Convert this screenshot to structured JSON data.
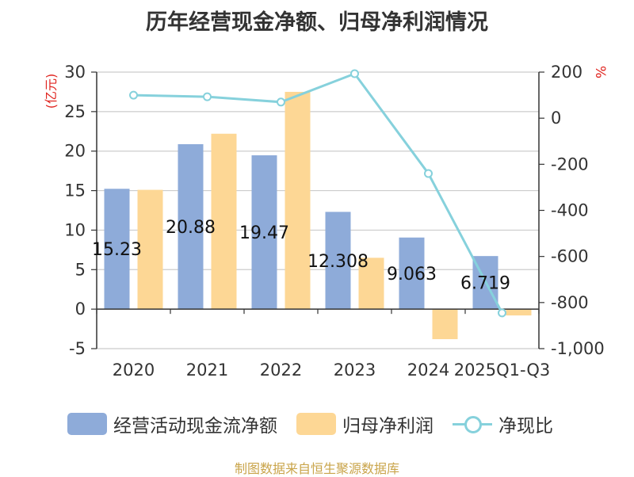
{
  "chart_data": {
    "type": "bar+line",
    "title": "历年经营现金净额、归母净利润情况",
    "categories": [
      "2020",
      "2021",
      "2022",
      "2023",
      "2024",
      "2025Q1-Q3"
    ],
    "series": [
      {
        "name": "经营活动现金流净额",
        "type": "bar",
        "axis": "left",
        "color": "#8eabd9",
        "values": [
          15.23,
          20.88,
          19.47,
          12.31,
          9.063,
          6.719
        ]
      },
      {
        "name": "归母净利润",
        "type": "bar",
        "axis": "left",
        "color": "#fdd795",
        "values": [
          15.1,
          22.2,
          27.5,
          6.5,
          -3.8,
          -0.8
        ]
      },
      {
        "name": "净现比",
        "type": "line",
        "axis": "right",
        "color": "#86d1dc",
        "values": [
          100,
          93,
          70,
          193,
          -240,
          -845
        ]
      }
    ],
    "bar_labels": [
      "15.23",
      "20.88",
      "19.47",
      "12.308",
      "9.063",
      "6.719"
    ],
    "left_axis": {
      "label": "(亿元)",
      "min": -5,
      "max": 30,
      "ticks": [
        30,
        25,
        20,
        15,
        10,
        5,
        0,
        -5
      ],
      "tick_labels": [
        "30",
        "25",
        "20",
        "15",
        "10",
        "5",
        "0",
        "-5"
      ]
    },
    "right_axis": {
      "label": "%",
      "min": -1000,
      "max": 200,
      "ticks": [
        200,
        0,
        -200,
        -400,
        -600,
        -800,
        -1000
      ],
      "tick_labels": [
        "200",
        "0",
        "-200",
        "-400",
        "-600",
        "-800",
        "-1,000"
      ]
    },
    "grid": true,
    "legend_position": "bottom"
  },
  "legend": [
    {
      "label": "经营活动现金流净额"
    },
    {
      "label": "归母净利润"
    },
    {
      "label": "净现比"
    }
  ],
  "source": "制图数据来自恒生聚源数据库"
}
